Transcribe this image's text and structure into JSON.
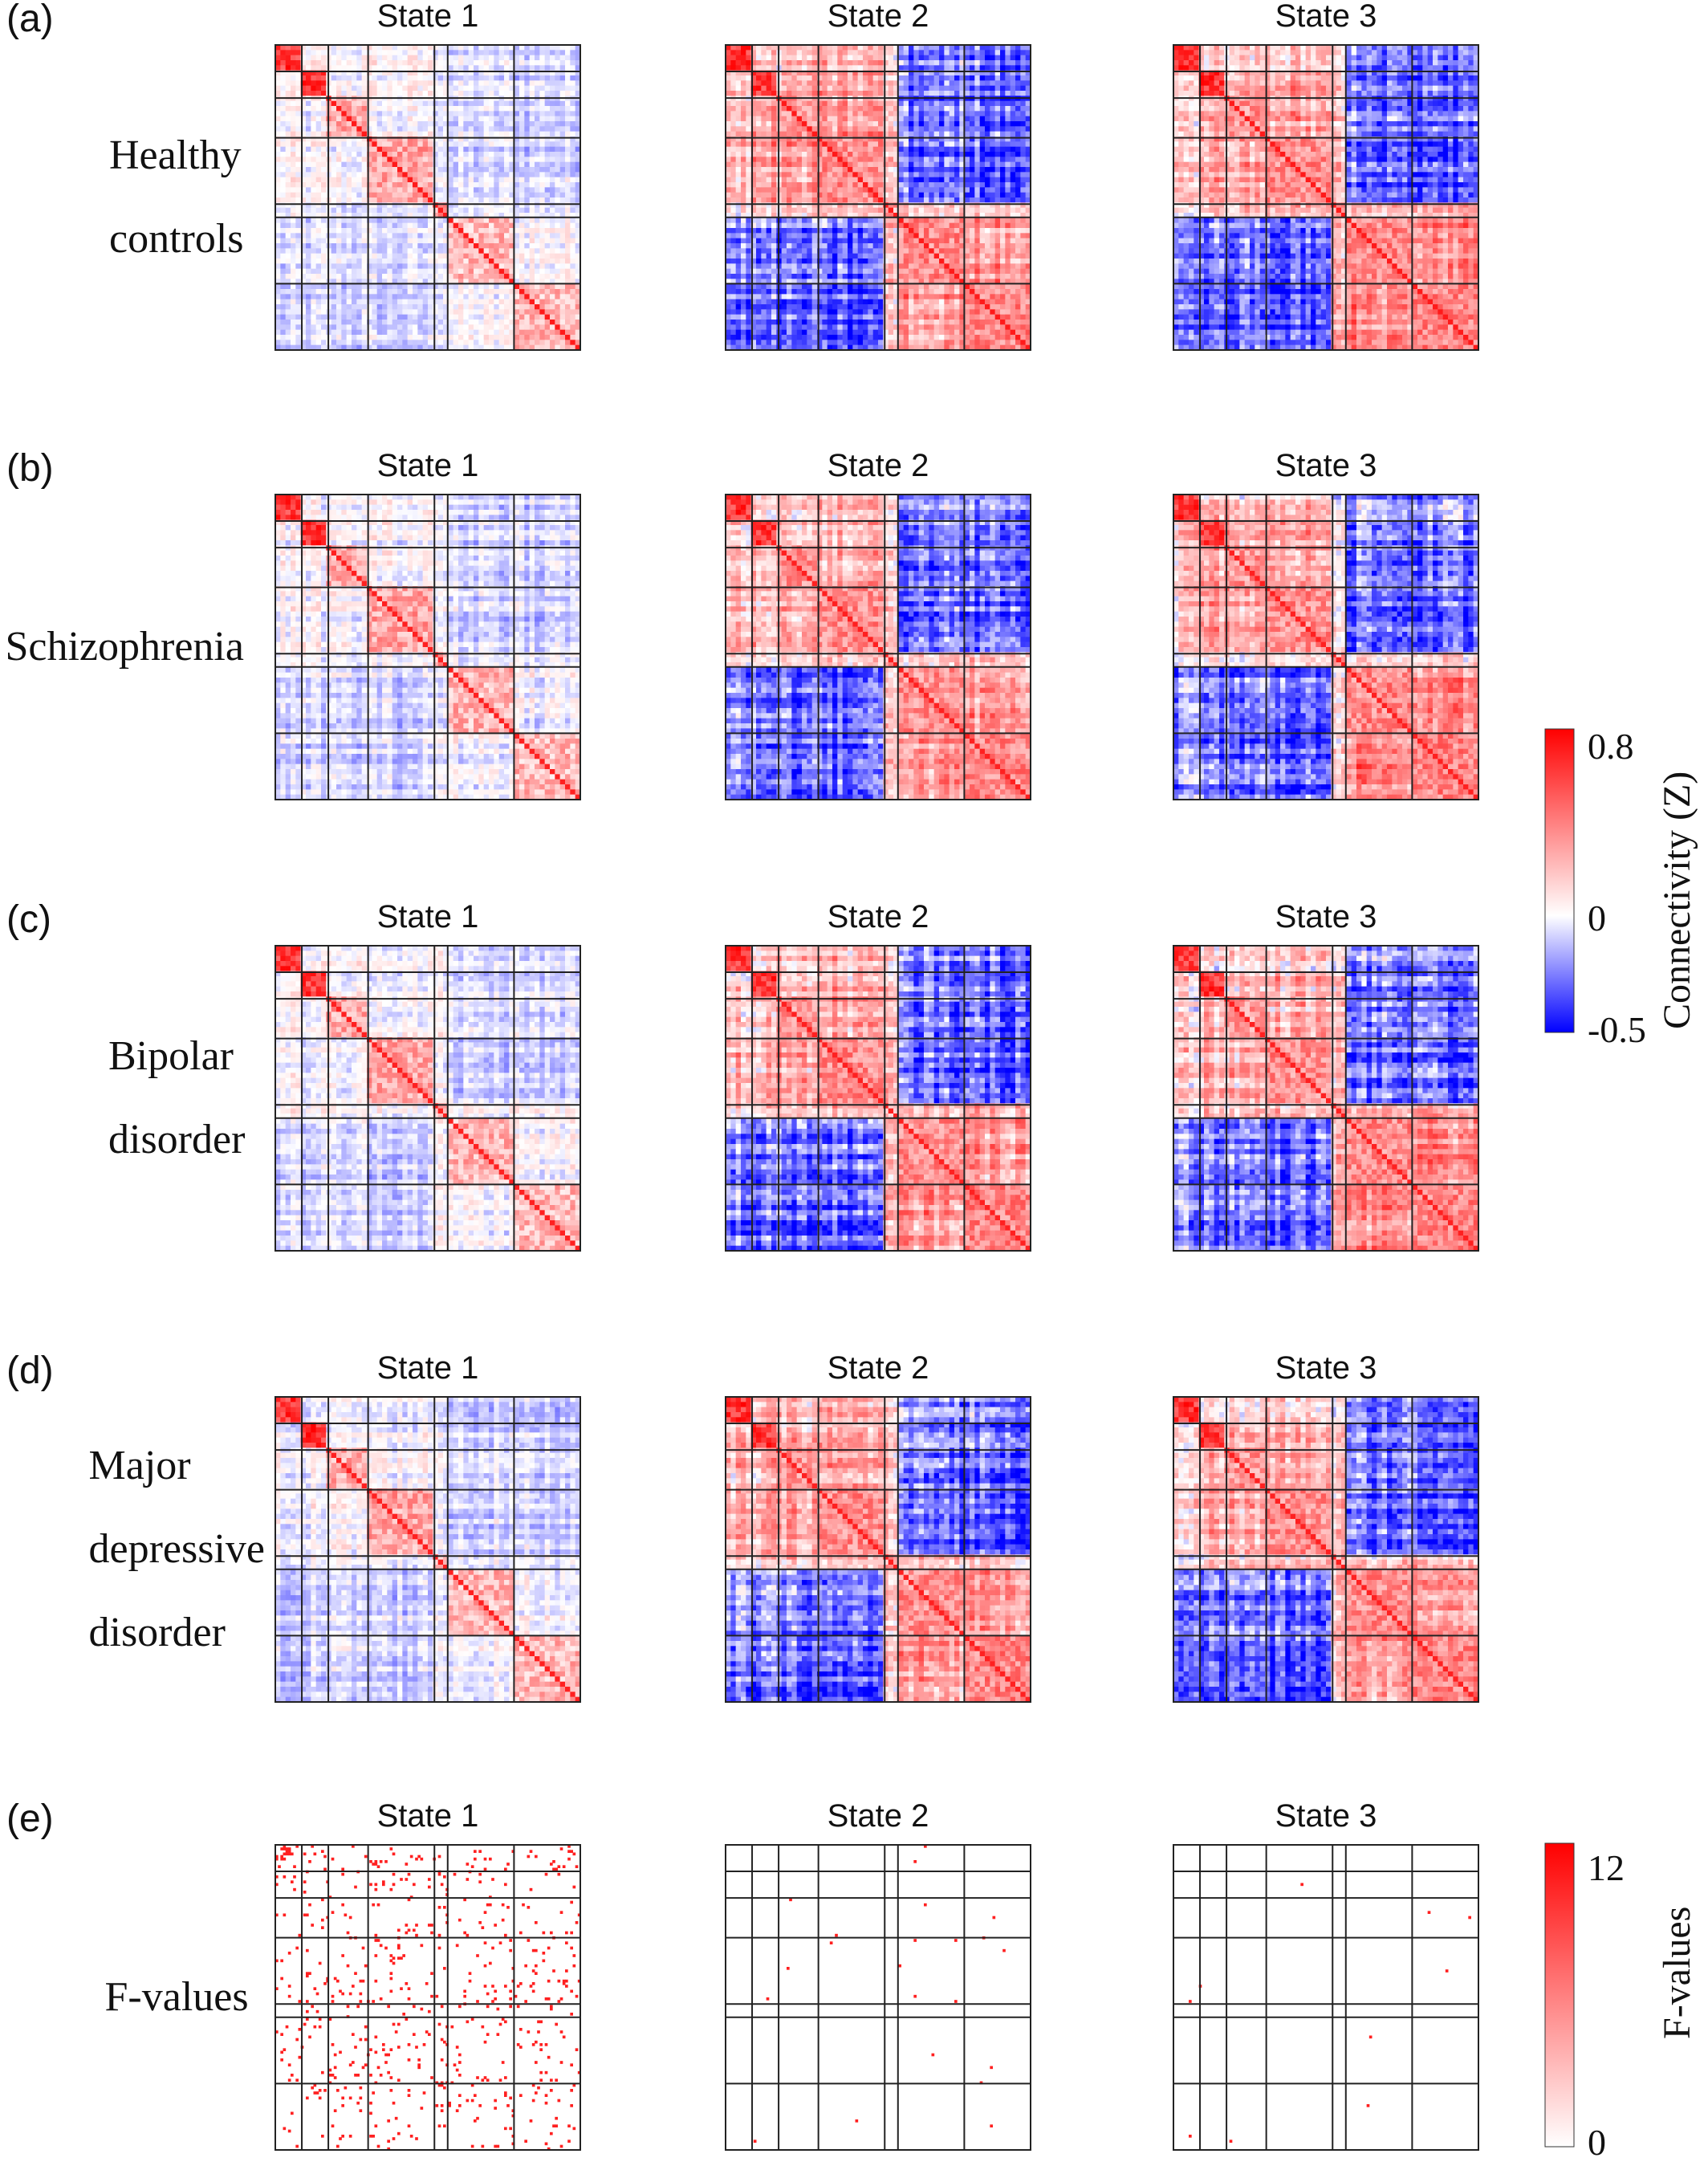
{
  "chart_data": {
    "type": "heatmap",
    "description_note": "",
    "state_titles": [
      "State 1",
      "State 2",
      "State 3"
    ],
    "network_blocks": [
      2,
      2,
      3,
      5,
      1,
      5,
      5
    ],
    "panels": [
      {
        "letter": "(a)",
        "label_lines": [
          "Healthy",
          "controls"
        ],
        "kind": "connectivity",
        "states": [
          {
            "bg": [
              -0.08,
              0.06,
              0.04,
              0.08,
              0.05,
              -0.08,
              -0.08
            ],
            "diag": 0.72
          },
          {
            "bg": [
              -0.12,
              0.18,
              0.22,
              0.28,
              0.04,
              0.28,
              0.32
            ],
            "diag": 0.72
          },
          {
            "bg": [
              0.08,
              0.22,
              0.2,
              0.28,
              0.04,
              0.3,
              0.36
            ],
            "diag": 0.72
          }
        ]
      },
      {
        "letter": "(b)",
        "label_lines": [
          "Schizophrenia"
        ],
        "kind": "connectivity",
        "states": [
          {
            "bg": [
              -0.08,
              0.06,
              0.05,
              0.08,
              0.05,
              -0.05,
              -0.08
            ],
            "diag": 0.7
          },
          {
            "bg": [
              -0.12,
              0.16,
              0.22,
              0.26,
              0.04,
              0.26,
              0.3
            ],
            "diag": 0.7
          },
          {
            "bg": [
              0.06,
              0.22,
              0.2,
              0.26,
              0.04,
              0.3,
              0.34
            ],
            "diag": 0.7
          }
        ]
      },
      {
        "letter": "(c)",
        "label_lines": [
          "Bipolar",
          "disorder"
        ],
        "kind": "connectivity",
        "states": [
          {
            "bg": [
              -0.08,
              0.05,
              0.06,
              0.08,
              0.05,
              -0.05,
              -0.08
            ],
            "diag": 0.7
          },
          {
            "bg": [
              -0.12,
              0.16,
              0.22,
              0.28,
              0.04,
              0.26,
              0.32
            ],
            "diag": 0.7
          },
          {
            "bg": [
              0.06,
              0.2,
              0.18,
              0.26,
              0.04,
              0.28,
              0.34
            ],
            "diag": 0.7
          }
        ]
      },
      {
        "letter": "(d)",
        "label_lines": [
          "Major",
          "depressive",
          "disorder"
        ],
        "kind": "connectivity",
        "states": [
          {
            "bg": [
              -0.08,
              0.05,
              0.06,
              0.08,
              0.05,
              -0.05,
              -0.08
            ],
            "diag": 0.7
          },
          {
            "bg": [
              -0.12,
              0.16,
              0.22,
              0.28,
              0.04,
              0.26,
              0.32
            ],
            "diag": 0.7
          },
          {
            "bg": [
              0.06,
              0.2,
              0.18,
              0.26,
              0.04,
              0.28,
              0.34
            ],
            "diag": 0.7
          }
        ]
      },
      {
        "letter": "(e)",
        "label_lines": [
          "F-values"
        ],
        "kind": "fvalues",
        "states": [
          {
            "significant_fraction": 0.035
          },
          {
            "significant_fraction": 0.0012
          },
          {
            "significant_fraction": 0.0005
          }
        ]
      }
    ],
    "connectivity_colorbar": {
      "label": "Connectivity (Z)",
      "min": -0.5,
      "max": 0.8,
      "ticks": [
        "0.8",
        "0",
        "-0.5"
      ],
      "colors": {
        "min": "#0000ff",
        "zero": "#ffffff",
        "max": "#ff0000"
      }
    },
    "fvalue_colorbar": {
      "label": "F-values",
      "min": 0,
      "max": 12,
      "ticks": [
        "12",
        "0"
      ],
      "colors": {
        "min": "#ffffff",
        "max": "#ff0000"
      }
    }
  }
}
